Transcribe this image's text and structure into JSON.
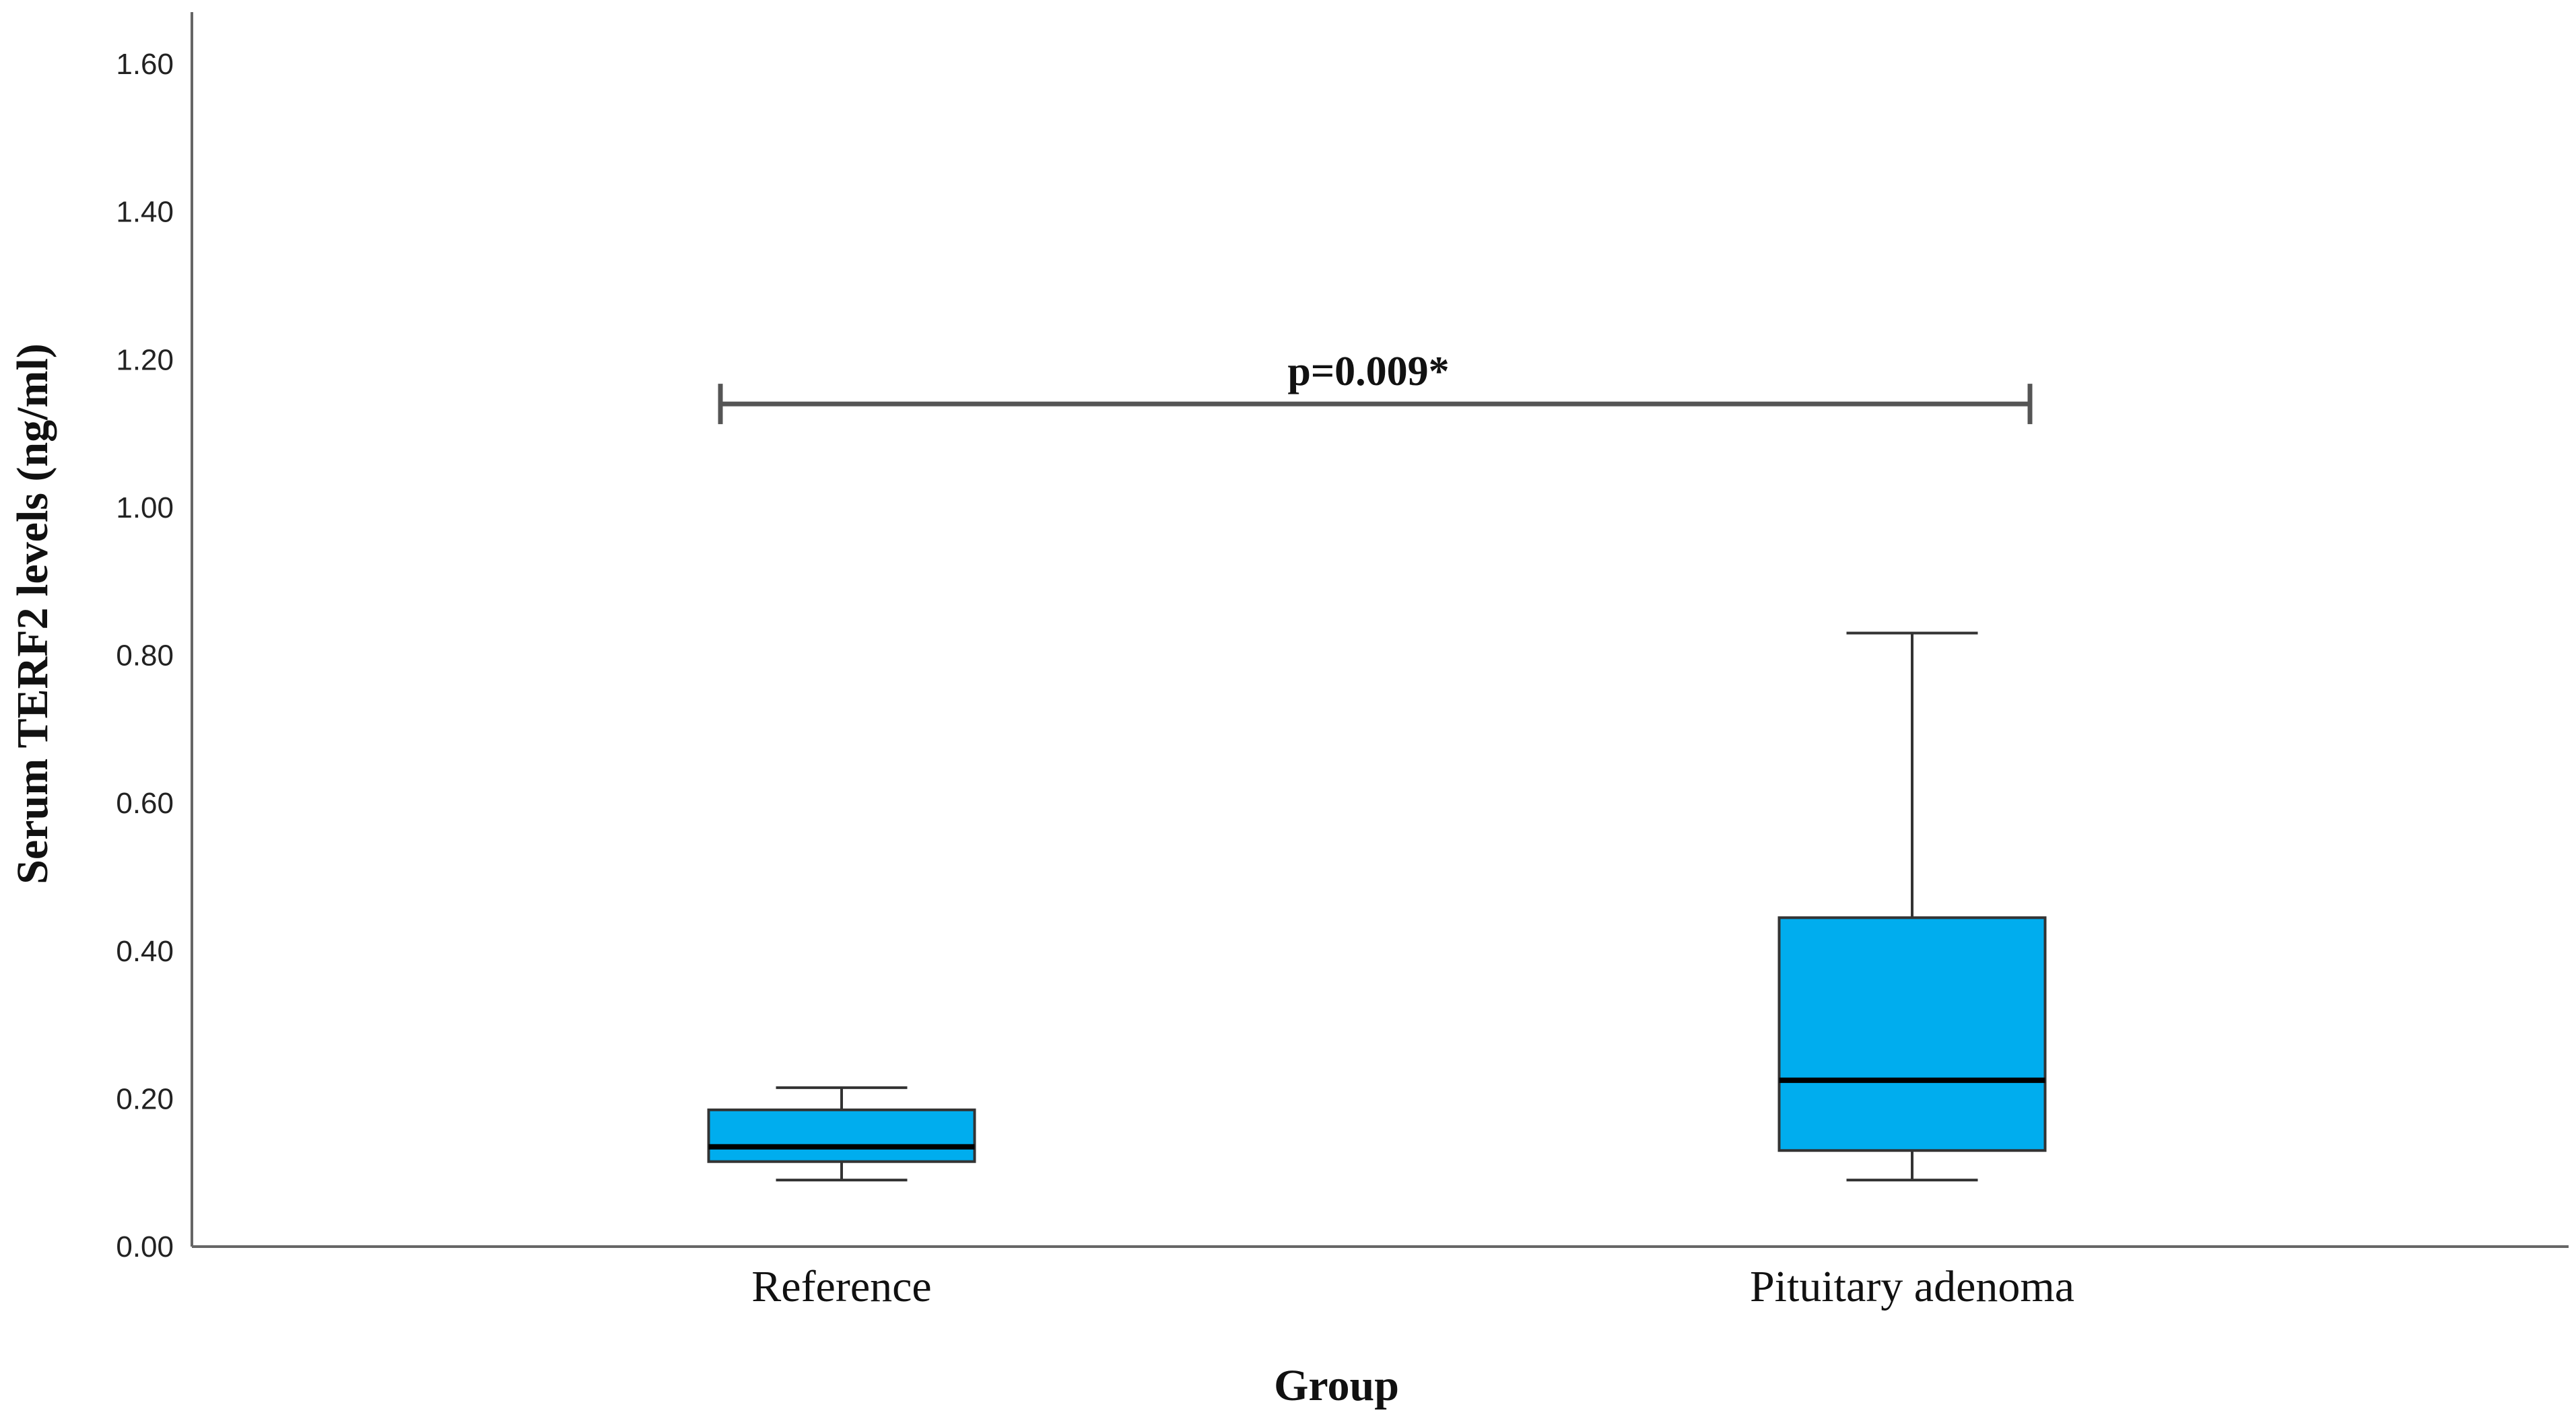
{
  "chart_data": {
    "type": "box",
    "xlabel": "Group",
    "ylabel": "Serum TERF2 levels (ng/ml)",
    "ylim": [
      0,
      1.6
    ],
    "yticks": [
      "0.00",
      "0.20",
      "0.40",
      "0.60",
      "0.80",
      "1.00",
      "1.20",
      "1.40",
      "1.60"
    ],
    "grid": false,
    "categories": [
      "Reference",
      "Pituitary adenoma"
    ],
    "boxes": [
      {
        "category": "Reference",
        "whisker_low": 0.09,
        "q1": 0.115,
        "median": 0.135,
        "q3": 0.185,
        "whisker_high": 0.215
      },
      {
        "category": "Pituitary adenoma",
        "whisker_low": 0.09,
        "q1": 0.13,
        "median": 0.225,
        "q3": 0.445,
        "whisker_high": 0.83
      }
    ],
    "box_color": "#00adee",
    "annotation": {
      "text": "p=0.009*",
      "y": 1.14,
      "from": "Reference",
      "to": "Pituitary adenoma"
    }
  }
}
